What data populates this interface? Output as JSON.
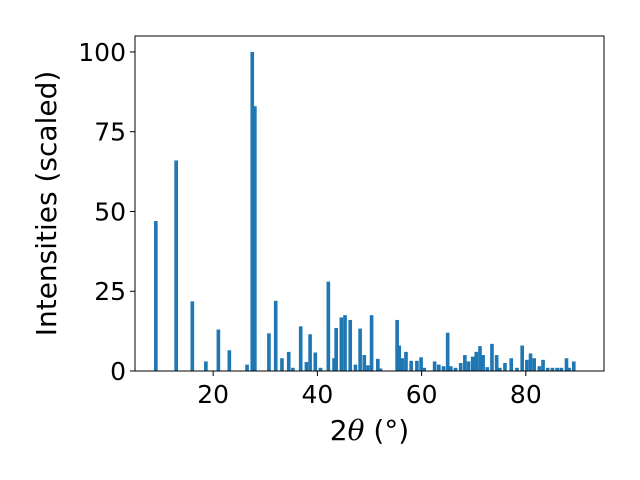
{
  "chart_data": {
    "type": "bar",
    "title": "",
    "xlabel_parts": {
      "prefix": "2",
      "symbol": "θ",
      "suffix": " (°)"
    },
    "ylabel": "Intensities (scaled)",
    "xlim": [
      5,
      95
    ],
    "ylim": [
      0,
      105
    ],
    "xticks": [
      20,
      40,
      60,
      80
    ],
    "yticks": [
      0,
      25,
      50,
      75,
      100
    ],
    "grid": false,
    "bar_color": "#1f77b4",
    "bar_width": 0.7,
    "x": [
      9.0,
      12.9,
      16.0,
      18.6,
      21.0,
      23.1,
      26.5,
      27.5,
      28.0,
      30.7,
      32.0,
      33.2,
      34.5,
      35.3,
      36.8,
      37.9,
      38.6,
      39.6,
      40.6,
      42.1,
      43.2,
      43.6,
      44.6,
      45.3,
      46.3,
      47.3,
      48.2,
      49.0,
      49.7,
      50.4,
      51.6,
      52.1,
      55.3,
      55.7,
      56.3,
      57.0,
      58.0,
      59.1,
      59.9,
      60.5,
      62.5,
      63.3,
      64.2,
      65.0,
      65.6,
      66.5,
      67.5,
      68.3,
      69.0,
      69.8,
      70.5,
      71.2,
      71.8,
      72.6,
      73.5,
      74.4,
      75.0,
      76.0,
      77.2,
      78.3,
      79.3,
      80.2,
      80.9,
      81.6,
      82.6,
      83.3,
      84.2,
      85.1,
      86.0,
      86.8,
      87.8,
      88.3,
      89.2
    ],
    "values": [
      47.0,
      66.0,
      21.8,
      3.0,
      13.0,
      6.5,
      2.0,
      100.0,
      83.0,
      11.8,
      22.0,
      4.0,
      6.0,
      1.0,
      14.0,
      2.8,
      11.5,
      5.8,
      1.0,
      28.0,
      4.0,
      13.5,
      16.8,
      17.5,
      16.0,
      2.0,
      13.3,
      5.0,
      1.8,
      17.5,
      3.8,
      0.8,
      16.0,
      8.0,
      4.0,
      6.0,
      3.2,
      3.2,
      4.3,
      1.0,
      3.0,
      2.0,
      1.5,
      12.0,
      1.5,
      1.0,
      2.5,
      5.0,
      3.0,
      4.5,
      6.0,
      7.8,
      5.0,
      1.2,
      8.5,
      5.0,
      1.0,
      2.5,
      4.0,
      1.0,
      8.0,
      3.5,
      5.5,
      4.0,
      1.5,
      3.5,
      1.0,
      1.0,
      1.0,
      1.0,
      4.0,
      1.0,
      3.0
    ]
  }
}
